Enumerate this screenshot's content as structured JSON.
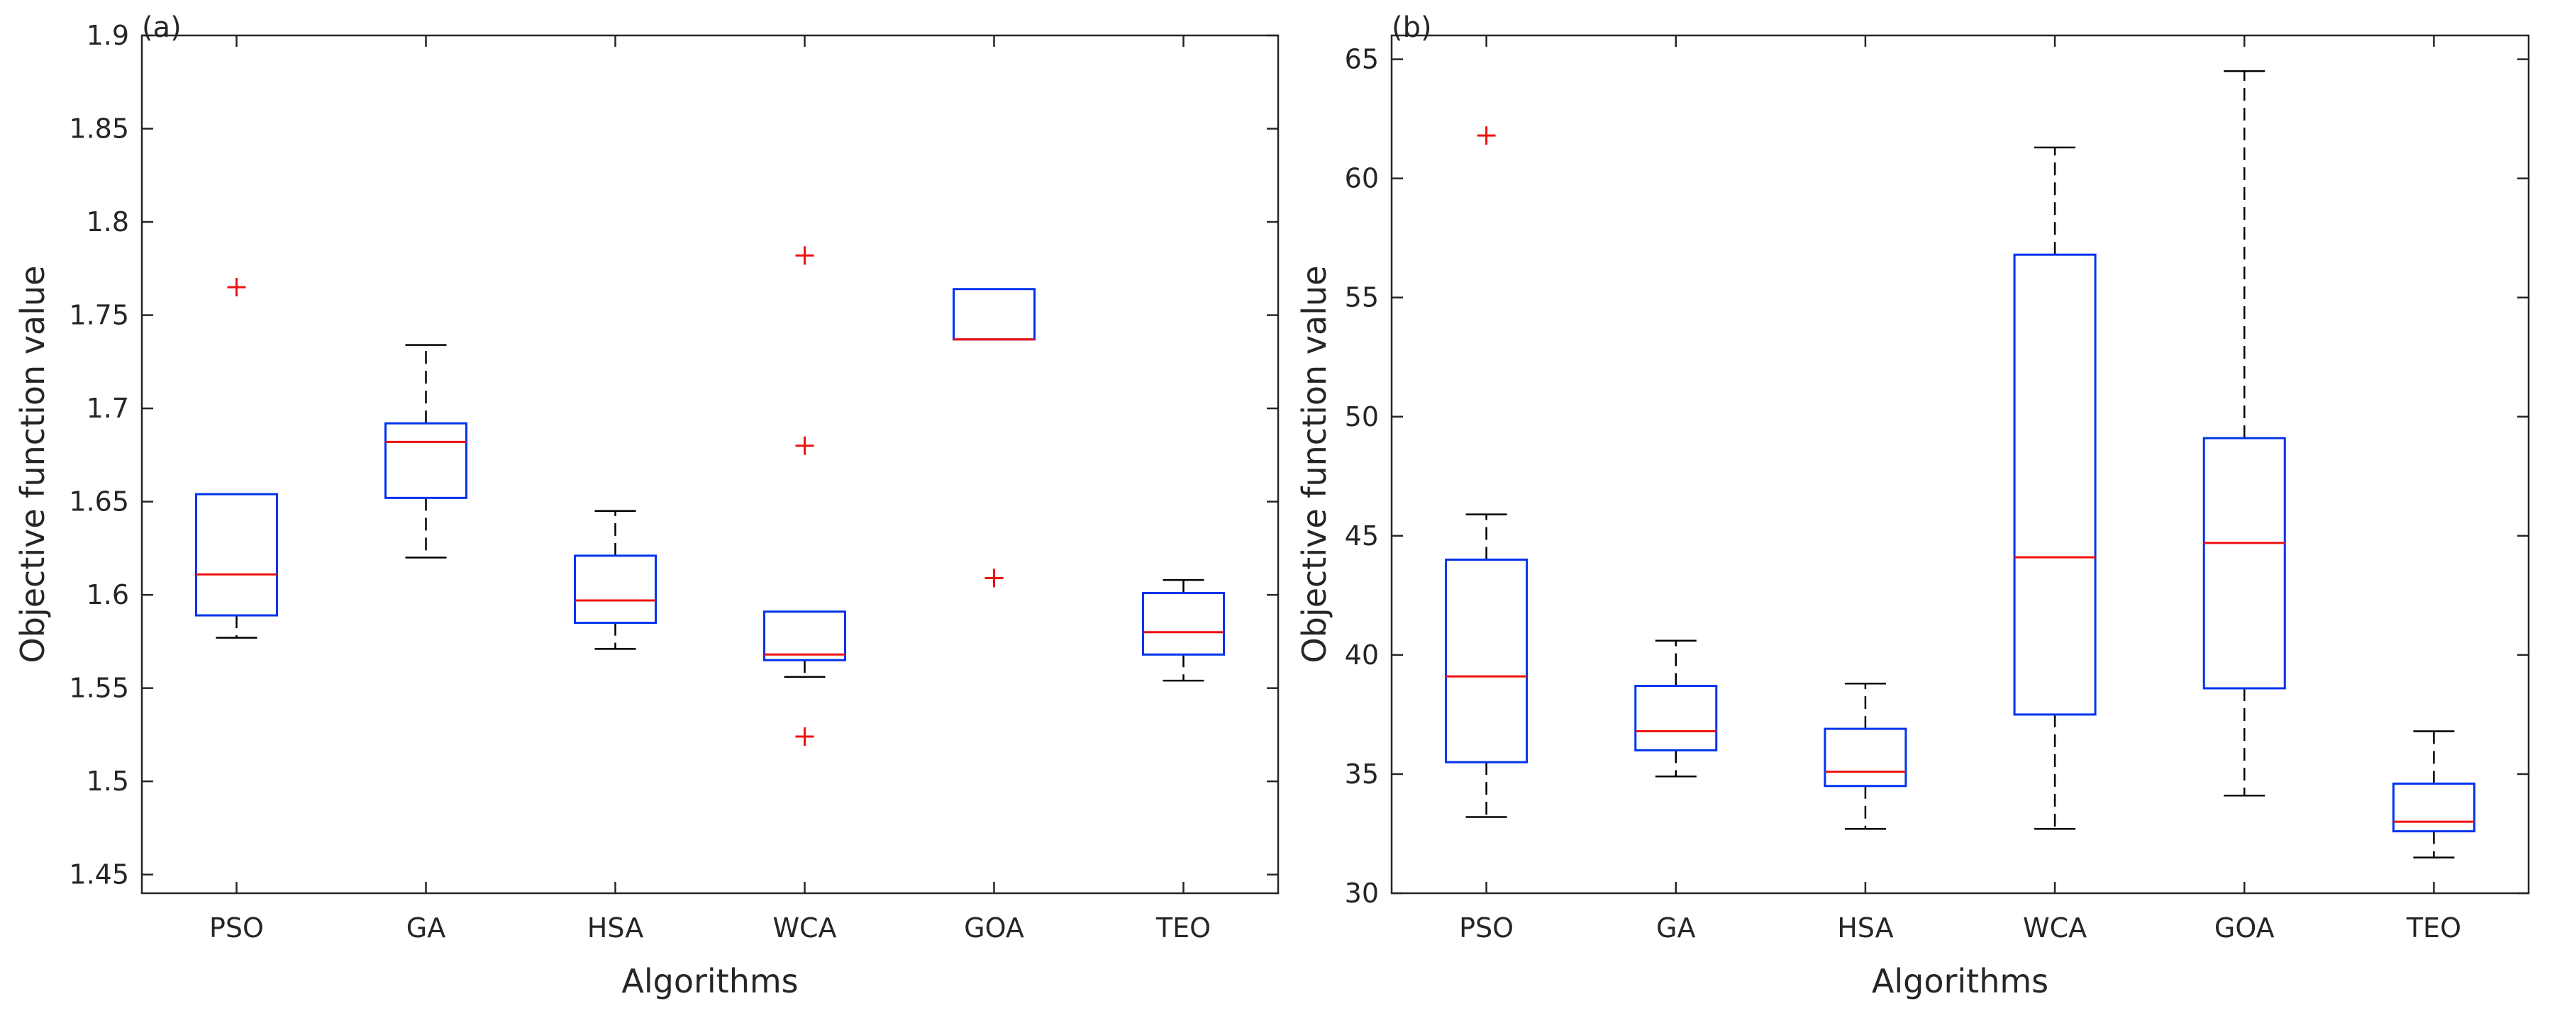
{
  "chart_data": [
    {
      "panel_label": "(a)",
      "type": "boxplot",
      "xlabel": "Algorithms",
      "ylabel": "Objective function value",
      "categories": [
        "PSO",
        "GA",
        "HSA",
        "WCA",
        "GOA",
        "TEO"
      ],
      "ylim": [
        1.44,
        1.9
      ],
      "yticks": [
        1.45,
        1.5,
        1.55,
        1.6,
        1.65,
        1.7,
        1.75,
        1.8,
        1.85,
        1.9
      ],
      "ytick_labels": [
        "1.45",
        "1.5",
        "1.55",
        "1.6",
        "1.65",
        "1.7",
        "1.75",
        "1.8",
        "1.85",
        "1.9"
      ],
      "boxes": [
        {
          "name": "PSO",
          "whisker_low": 1.577,
          "q1": 1.589,
          "median": 1.611,
          "q3": 1.654,
          "whisker_high": 1.654,
          "outliers": [
            1.765
          ]
        },
        {
          "name": "GA",
          "whisker_low": 1.62,
          "q1": 1.652,
          "median": 1.682,
          "q3": 1.692,
          "whisker_high": 1.734,
          "outliers": []
        },
        {
          "name": "HSA",
          "whisker_low": 1.571,
          "q1": 1.585,
          "median": 1.597,
          "q3": 1.621,
          "whisker_high": 1.645,
          "outliers": []
        },
        {
          "name": "WCA",
          "whisker_low": 1.556,
          "q1": 1.565,
          "median": 1.568,
          "q3": 1.591,
          "whisker_high": 1.591,
          "outliers": [
            1.524,
            1.68,
            1.782
          ]
        },
        {
          "name": "GOA",
          "whisker_low": 1.737,
          "q1": 1.737,
          "median": 1.737,
          "q3": 1.764,
          "whisker_high": 1.764,
          "outliers": [
            1.609
          ]
        },
        {
          "name": "TEO",
          "whisker_low": 1.554,
          "q1": 1.568,
          "median": 1.58,
          "q3": 1.601,
          "whisker_high": 1.608,
          "outliers": []
        }
      ],
      "grid": false,
      "legend": "none"
    },
    {
      "panel_label": "(b)",
      "type": "boxplot",
      "xlabel": "Algorithms",
      "ylabel": "Objective function value",
      "categories": [
        "PSO",
        "GA",
        "HSA",
        "WCA",
        "GOA",
        "TEO"
      ],
      "ylim": [
        30,
        66
      ],
      "yticks": [
        30,
        35,
        40,
        45,
        50,
        55,
        60,
        65
      ],
      "ytick_labels": [
        "30",
        "35",
        "40",
        "45",
        "50",
        "55",
        "60",
        "65"
      ],
      "boxes": [
        {
          "name": "PSO",
          "whisker_low": 33.2,
          "q1": 35.5,
          "median": 39.1,
          "q3": 44.0,
          "whisker_high": 45.9,
          "outliers": [
            61.8
          ]
        },
        {
          "name": "GA",
          "whisker_low": 34.9,
          "q1": 36.0,
          "median": 36.8,
          "q3": 38.7,
          "whisker_high": 40.6,
          "outliers": []
        },
        {
          "name": "HSA",
          "whisker_low": 32.7,
          "q1": 34.5,
          "median": 35.1,
          "q3": 36.9,
          "whisker_high": 38.8,
          "outliers": []
        },
        {
          "name": "WCA",
          "whisker_low": 32.7,
          "q1": 37.5,
          "median": 44.1,
          "q3": 56.8,
          "whisker_high": 61.3,
          "outliers": []
        },
        {
          "name": "GOA",
          "whisker_low": 34.1,
          "q1": 38.6,
          "median": 44.7,
          "q3": 49.1,
          "whisker_high": 64.5,
          "outliers": []
        },
        {
          "name": "TEO",
          "whisker_low": 31.5,
          "q1": 32.6,
          "median": 33.0,
          "q3": 34.6,
          "whisker_high": 36.8,
          "outliers": []
        }
      ],
      "grid": false,
      "legend": "none"
    }
  ],
  "colors": {
    "box": "#0033ee",
    "median": "#ee1111",
    "whisker": "#000000",
    "outlier": "#ee1111",
    "axis": "#262626",
    "text": "#262626"
  }
}
